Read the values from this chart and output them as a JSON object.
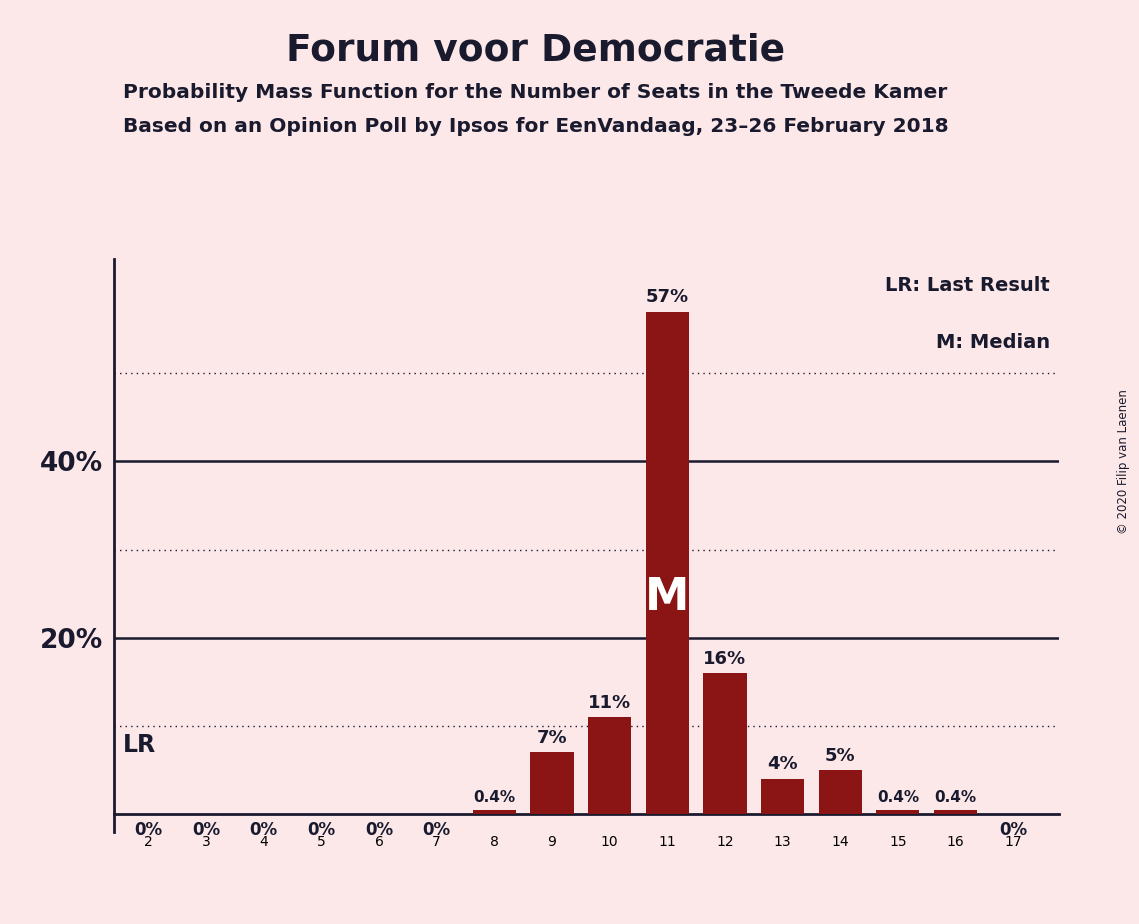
{
  "title": "Forum voor Democratie",
  "subtitle1": "Probability Mass Function for the Number of Seats in the Tweede Kamer",
  "subtitle2": "Based on an Opinion Poll by Ipsos for EenVandaag, 23–26 February 2018",
  "copyright": "© 2020 Filip van Laenen",
  "seats": [
    2,
    3,
    4,
    5,
    6,
    7,
    8,
    9,
    10,
    11,
    12,
    13,
    14,
    15,
    16,
    17
  ],
  "probabilities": [
    0.0,
    0.0,
    0.0,
    0.0,
    0.0,
    0.0,
    0.4,
    7.0,
    11.0,
    57.0,
    16.0,
    4.0,
    5.0,
    0.4,
    0.4,
    0.0
  ],
  "bar_color": "#8b1414",
  "background_color": "#fce8e8",
  "axis_color": "#1a1a2e",
  "label_color": "#1a1a2e",
  "median_seat": 11,
  "last_result_seat": 11,
  "yticks_solid": [
    20,
    40
  ],
  "dotted_lines": [
    10,
    30,
    50
  ],
  "ylim": [
    0,
    63
  ],
  "legend_text": [
    "LR: Last Result",
    "M: Median"
  ],
  "lr_label": "LR",
  "median_label": "M"
}
